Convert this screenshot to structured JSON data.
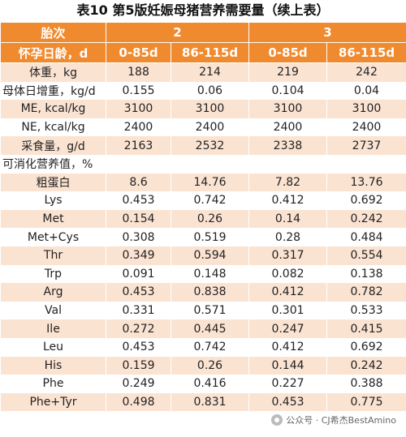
{
  "title": "表10 第5版妊娠母猪营养需要量（续上表）",
  "header": {
    "parity_label": "胎次",
    "parity_2": "2",
    "parity_3": "3",
    "gestation_label": "怀孕日龄，d",
    "periods": [
      "0-85d",
      "86-115d",
      "0-85d",
      "86-115d"
    ]
  },
  "rows": [
    {
      "label": "体重，kg",
      "values": [
        "188",
        "214",
        "219",
        "242"
      ]
    },
    {
      "label": "母体日增重，kg/d",
      "values": [
        "0.155",
        "0.06",
        "0.104",
        "0.04"
      ]
    },
    {
      "label": "ME, kcal/kg",
      "values": [
        "3100",
        "3100",
        "3100",
        "3100"
      ]
    },
    {
      "label": "NE, kcal/kg",
      "values": [
        "2400",
        "2400",
        "2400",
        "2400"
      ]
    },
    {
      "label": "采食量，g/d",
      "values": [
        "2163",
        "2532",
        "2338",
        "2737"
      ]
    },
    {
      "label": "可消化营养值，%",
      "values": [
        "",
        "",
        "",
        ""
      ]
    },
    {
      "label": "粗蛋白",
      "values": [
        "8.6",
        "14.76",
        "7.82",
        "13.76"
      ]
    },
    {
      "label": "Lys",
      "values": [
        "0.453",
        "0.742",
        "0.412",
        "0.692"
      ]
    },
    {
      "label": "Met",
      "values": [
        "0.154",
        "0.26",
        "0.14",
        "0.242"
      ]
    },
    {
      "label": "Met+Cys",
      "values": [
        "0.308",
        "0.519",
        "0.28",
        "0.484"
      ]
    },
    {
      "label": "Thr",
      "values": [
        "0.349",
        "0.594",
        "0.317",
        "0.554"
      ]
    },
    {
      "label": "Trp",
      "values": [
        "0.091",
        "0.148",
        "0.082",
        "0.138"
      ]
    },
    {
      "label": "Arg",
      "values": [
        "0.453",
        "0.838",
        "0.412",
        "0.782"
      ]
    },
    {
      "label": "Val",
      "values": [
        "0.331",
        "0.571",
        "0.301",
        "0.533"
      ]
    },
    {
      "label": "Ile",
      "values": [
        "0.272",
        "0.445",
        "0.247",
        "0.415"
      ]
    },
    {
      "label": "Leu",
      "values": [
        "0.453",
        "0.742",
        "0.412",
        "0.692"
      ]
    },
    {
      "label": "His",
      "values": [
        "0.159",
        "0.26",
        "0.144",
        "0.242"
      ]
    },
    {
      "label": "Phe",
      "values": [
        "0.249",
        "0.416",
        "0.227",
        "0.388"
      ]
    },
    {
      "label": "Phe+Tyr",
      "values": [
        "0.498",
        "0.831",
        "0.453",
        "0.775"
      ]
    }
  ],
  "watermark": "公众号 · CJ希杰BestAmino",
  "colors": {
    "header": "#f08a2f",
    "stripe": "#fbe3d2"
  }
}
